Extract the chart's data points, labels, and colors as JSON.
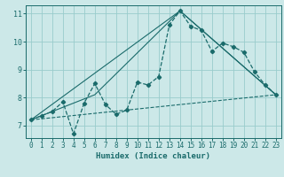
{
  "title": "",
  "xlabel": "Humidex (Indice chaleur)",
  "bg_color": "#cce8e8",
  "grid_color": "#99cccc",
  "line_color": "#1a6b6b",
  "xlim": [
    -0.5,
    23.5
  ],
  "ylim": [
    6.55,
    11.3
  ],
  "xticks": [
    0,
    1,
    2,
    3,
    4,
    5,
    6,
    7,
    8,
    9,
    10,
    11,
    12,
    13,
    14,
    15,
    16,
    17,
    18,
    19,
    20,
    21,
    22,
    23
  ],
  "yticks": [
    7,
    8,
    9,
    10,
    11
  ],
  "line1_x": [
    0,
    1,
    2,
    3,
    4,
    5,
    6,
    7,
    8,
    9,
    10,
    11,
    12,
    13,
    14,
    15,
    16,
    17,
    18,
    19,
    20,
    21,
    22,
    23
  ],
  "line1_y": [
    7.2,
    7.35,
    7.5,
    7.85,
    6.7,
    7.8,
    8.5,
    7.75,
    7.4,
    7.55,
    8.55,
    8.45,
    8.75,
    10.6,
    11.1,
    10.55,
    10.4,
    9.65,
    9.95,
    9.82,
    9.62,
    8.92,
    8.45,
    8.1
  ],
  "line2_x": [
    0,
    23
  ],
  "line2_y": [
    7.2,
    8.1
  ],
  "line3_x": [
    0,
    14,
    23
  ],
  "line3_y": [
    7.2,
    11.1,
    8.1
  ],
  "line4_x": [
    0,
    6,
    14,
    23
  ],
  "line4_y": [
    7.2,
    8.1,
    11.1,
    8.1
  ]
}
